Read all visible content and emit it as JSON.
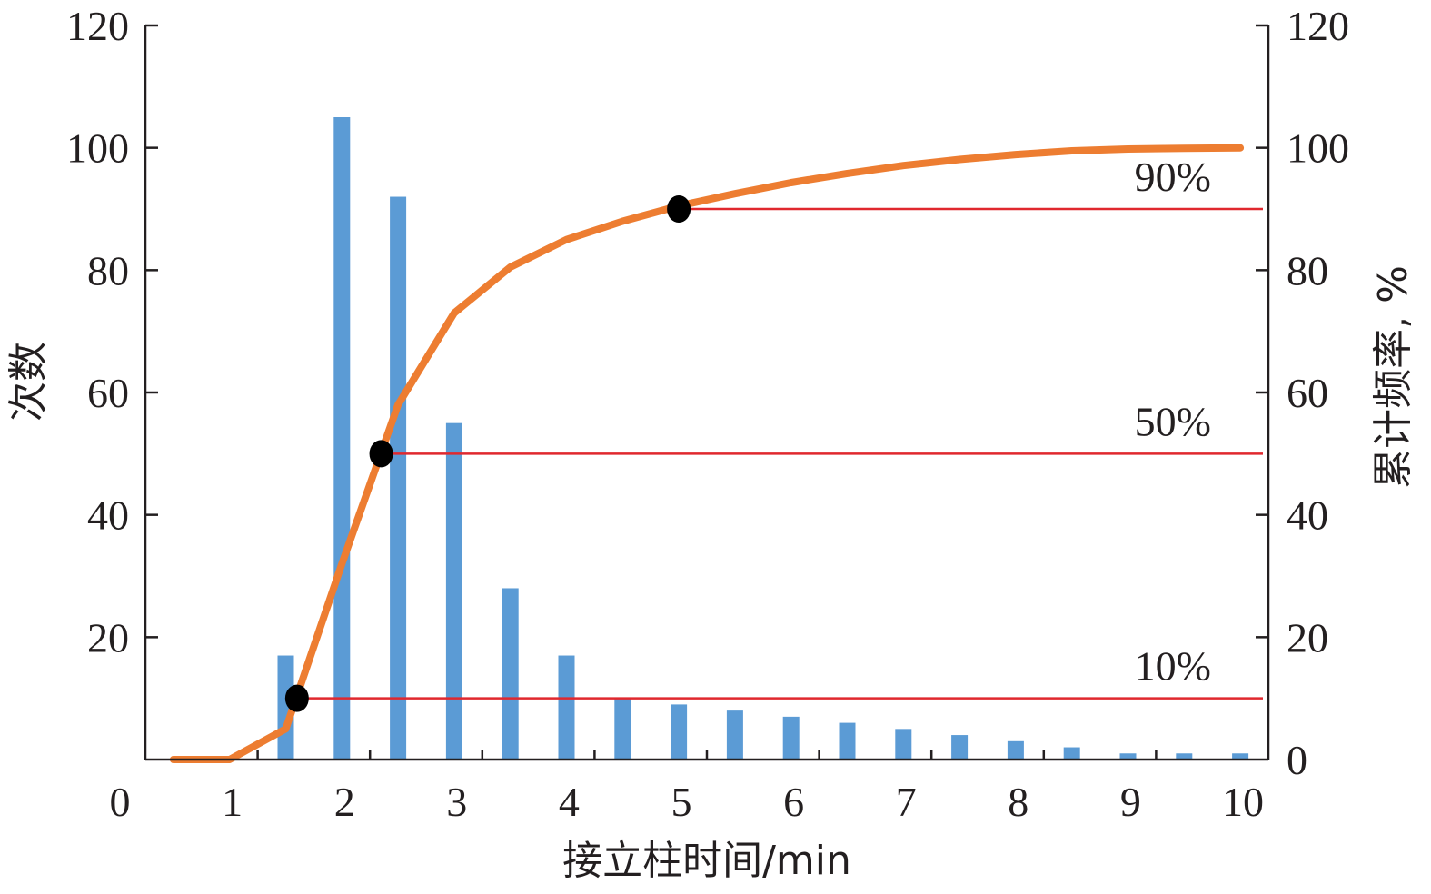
{
  "chart_data": {
    "type": "bar",
    "xlabel": "接立柱时间/min",
    "ylabel": "次数",
    "y2label": "累计频率, %",
    "xlim": [
      0,
      10
    ],
    "ylim": [
      0,
      120
    ],
    "y2lim": [
      0,
      120
    ],
    "x_ticks": [
      0,
      1,
      2,
      3,
      4,
      5,
      6,
      7,
      8,
      9,
      10
    ],
    "y_ticks": [
      20,
      40,
      60,
      80,
      100,
      120
    ],
    "y2_ticks": [
      0,
      20,
      40,
      60,
      80,
      100,
      120
    ],
    "grid": false,
    "series": [
      {
        "type": "bar",
        "axis": "left",
        "color": "#5b9bd5",
        "x": [
          1.25,
          1.75,
          2.25,
          2.75,
          3.25,
          3.75,
          4.25,
          4.75,
          5.25,
          5.75,
          6.25,
          6.75,
          7.25,
          7.75,
          8.25,
          8.75,
          9.25,
          9.75
        ],
        "values": [
          17,
          105,
          92,
          55,
          28,
          17,
          10,
          9,
          8,
          7,
          6,
          5,
          4,
          3,
          2,
          1,
          1,
          1
        ]
      },
      {
        "type": "line",
        "axis": "right",
        "color": "#ed7d31",
        "x": [
          0.25,
          0.75,
          1.25,
          1.75,
          2.25,
          2.75,
          3.25,
          3.75,
          4.25,
          4.75,
          5.25,
          5.75,
          6.25,
          6.75,
          7.25,
          7.75,
          8.25,
          8.75,
          9.25,
          9.75
        ],
        "values": [
          0,
          0,
          5,
          32,
          58,
          73,
          80.5,
          85,
          88,
          90.5,
          92.5,
          94.3,
          95.8,
          97.1,
          98.1,
          98.9,
          99.5,
          99.8,
          99.9,
          100
        ]
      }
    ],
    "reference_lines": [
      {
        "value": 90,
        "label": "90%",
        "x_start": 4.75,
        "color": "#e0282e"
      },
      {
        "value": 50,
        "label": "50%",
        "x_start": 2.1,
        "color": "#e0282e"
      },
      {
        "value": 10,
        "label": "10%",
        "x_start": 1.35,
        "color": "#e0282e"
      }
    ],
    "markers": [
      {
        "x": 4.75,
        "y": 90
      },
      {
        "x": 2.1,
        "y": 50
      },
      {
        "x": 1.35,
        "y": 10
      }
    ]
  }
}
